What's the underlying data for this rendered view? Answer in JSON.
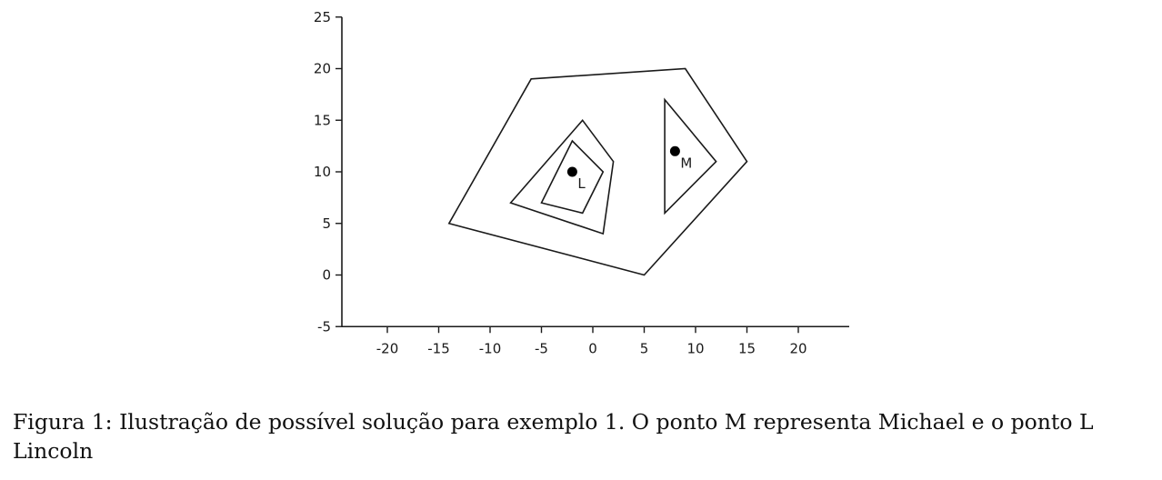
{
  "caption": {
    "label": "Figura 1:",
    "text": "Ilustração de possível solução para exemplo 1. O ponto M representa Michael e o ponto L Lincoln"
  },
  "chart_data": {
    "type": "scatter",
    "xlim": [
      -25,
      25
    ],
    "ylim": [
      -5,
      25
    ],
    "x_ticks": [
      -20,
      -15,
      -10,
      -5,
      0,
      5,
      10,
      15,
      20
    ],
    "y_ticks": [
      -5,
      0,
      5,
      10,
      15,
      20,
      25
    ],
    "x_tick_labels": [
      "-20",
      "-15",
      "-10",
      "-5",
      "0",
      "5",
      "10",
      "15",
      "20"
    ],
    "y_tick_labels": [
      "-5",
      "0",
      "5",
      "10",
      "15",
      "20",
      "25"
    ],
    "grid": false,
    "polygons": [
      {
        "vertices": [
          [
            -6,
            19
          ],
          [
            9,
            20
          ],
          [
            15,
            11
          ],
          [
            5,
            0
          ],
          [
            -14,
            5
          ]
        ]
      },
      {
        "vertices": [
          [
            -1,
            15
          ],
          [
            2,
            11
          ],
          [
            1,
            4
          ],
          [
            -8,
            7
          ]
        ]
      },
      {
        "vertices": [
          [
            -2,
            13
          ],
          [
            1,
            10
          ],
          [
            -1,
            6
          ],
          [
            -5,
            7
          ]
        ]
      },
      {
        "vertices": [
          [
            7,
            17
          ],
          [
            12,
            11
          ],
          [
            7,
            6
          ]
        ]
      }
    ],
    "points": [
      {
        "label": "L",
        "x": -2,
        "y": 10
      },
      {
        "label": "M",
        "x": 8,
        "y": 12
      }
    ]
  }
}
